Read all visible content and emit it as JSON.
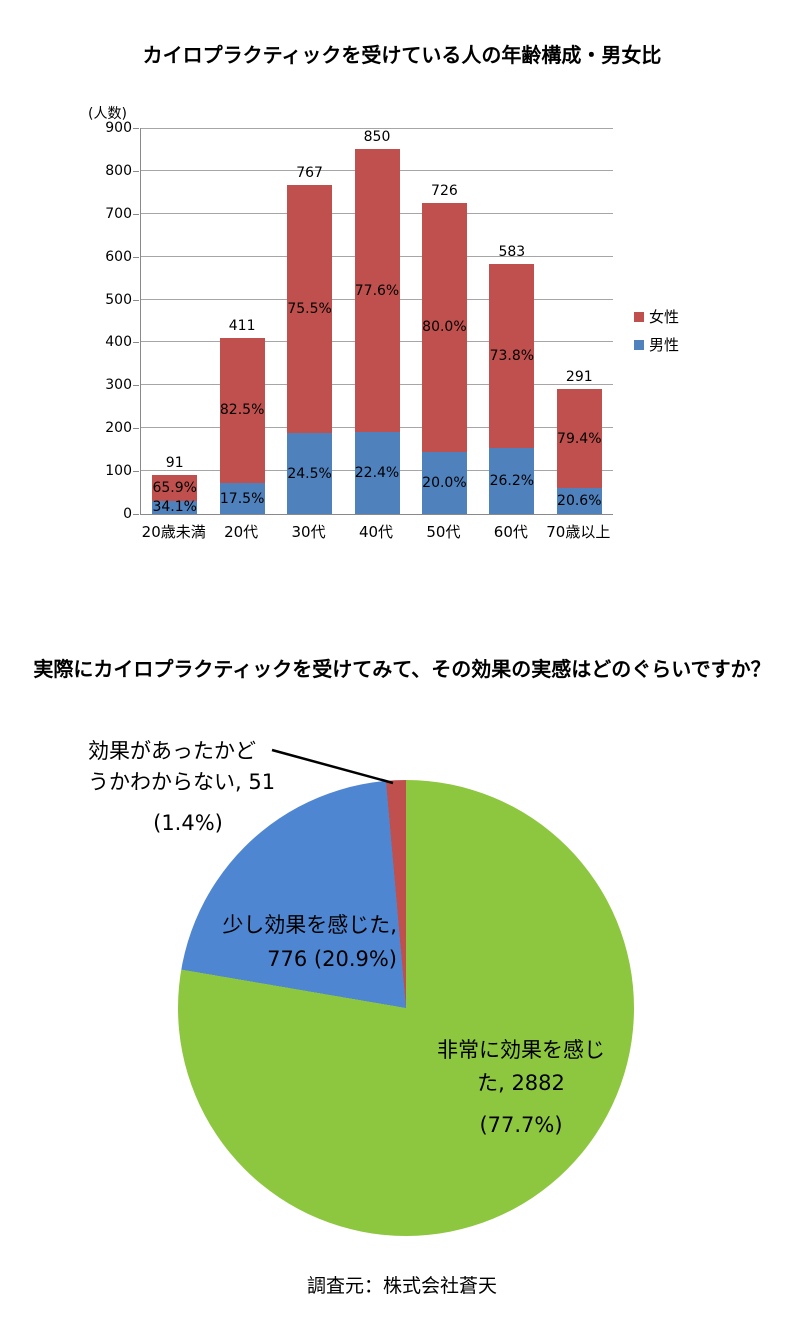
{
  "chart_data": [
    {
      "type": "bar",
      "subtype": "stacked-column",
      "title": "カイロプラクティックを受けている人の年齢構成・男女比",
      "ylabel": "(人数)",
      "ylim": [
        0,
        900
      ],
      "ytick_step": 100,
      "grid": true,
      "legend_position": "right",
      "categories": [
        "20歳未満",
        "20代",
        "30代",
        "40代",
        "50代",
        "60代",
        "70歳以上"
      ],
      "totals": [
        91,
        411,
        767,
        850,
        726,
        583,
        291
      ],
      "series": [
        {
          "name": "男性",
          "pct": [
            34.1,
            17.5,
            24.5,
            22.4,
            20.0,
            26.2,
            20.6
          ],
          "color": "#4F81BD"
        },
        {
          "name": "女性",
          "pct": [
            65.9,
            82.5,
            75.5,
            77.6,
            80.0,
            73.8,
            79.4
          ],
          "color": "#C0504D"
        }
      ]
    },
    {
      "type": "pie",
      "title": "実際にカイロプラクティックを受けてみて、その効果の実感はどのぐらいですか？",
      "start_angle_deg": 0,
      "direction": "clockwise",
      "slices": [
        {
          "label": "非常に効果を感じた",
          "value": 2882,
          "pct": 77.7,
          "color": "#8DC63F"
        },
        {
          "label": "少し効果を感じた",
          "value": 776,
          "pct": 20.9,
          "color": "#4F86D1"
        },
        {
          "label": "効果があったかどうかわからない",
          "value": 51,
          "pct": 1.4,
          "color": "#C0504D"
        }
      ],
      "callouts": {
        "unknown": {
          "lines": [
            "効果があったかど",
            "うかわからない, 51"
          ],
          "pct_text": "(1.4%)"
        },
        "slight": {
          "lines": [
            "少し効果を感じた,",
            "776 (20.9%)"
          ]
        },
        "strong": {
          "lines": [
            "非常に効果を感じ",
            "た, 2882"
          ],
          "pct_text": "(77.7%)"
        }
      }
    }
  ],
  "colors": {
    "female": "#C0504D",
    "male": "#4F81BD",
    "pie_green": "#8DC63F",
    "pie_blue": "#4F86D1",
    "pie_red": "#C0504D",
    "gridline": "#a6a6a6",
    "axis": "#898989"
  },
  "footer": {
    "source": "調査元：株式会社蒼天"
  }
}
